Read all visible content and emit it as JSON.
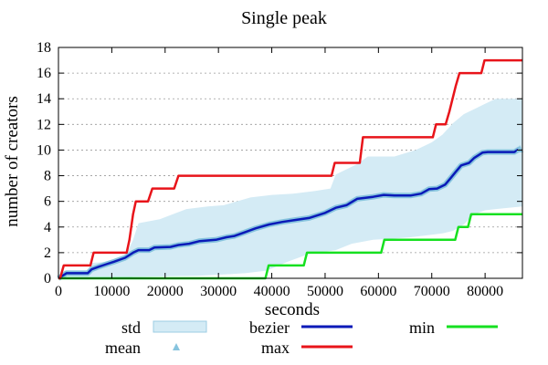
{
  "chart_data": {
    "type": "line",
    "title": "Single peak",
    "xlabel": "seconds",
    "ylabel": "number of creators",
    "xlim": [
      0,
      87000
    ],
    "ylim": [
      0,
      18
    ],
    "xticks": [
      0,
      10000,
      20000,
      30000,
      40000,
      50000,
      60000,
      70000,
      80000
    ],
    "yticks": [
      0,
      2,
      4,
      6,
      8,
      10,
      12,
      14,
      16,
      18
    ],
    "grid": true,
    "legend_position": "bottom",
    "legend": [
      {
        "key": "std",
        "label": "std",
        "style": "band"
      },
      {
        "key": "mean",
        "label": "mean",
        "style": "marker"
      },
      {
        "key": "bezier",
        "label": "bezier",
        "style": "line"
      },
      {
        "key": "max",
        "label": "max",
        "style": "line"
      },
      {
        "key": "min",
        "label": "min",
        "style": "line"
      }
    ],
    "colors": {
      "std": "#d4ebf5",
      "std_edge": "#9ccde3",
      "mean": "#87c4de",
      "bezier": "#0a1ab8",
      "max": "#e8141a",
      "min": "#16e020"
    },
    "series": {
      "max": [
        [
          0,
          0
        ],
        [
          300,
          0
        ],
        [
          1000,
          1
        ],
        [
          6000,
          1
        ],
        [
          6600,
          2
        ],
        [
          12800,
          2
        ],
        [
          13300,
          3
        ],
        [
          14000,
          5
        ],
        [
          14500,
          6
        ],
        [
          16800,
          6
        ],
        [
          17600,
          7
        ],
        [
          21700,
          7
        ],
        [
          22500,
          8
        ],
        [
          51200,
          8
        ],
        [
          51800,
          9
        ],
        [
          56500,
          9
        ],
        [
          57100,
          11
        ],
        [
          70200,
          11
        ],
        [
          70800,
          12
        ],
        [
          72600,
          12
        ],
        [
          73300,
          13
        ],
        [
          74500,
          15
        ],
        [
          75200,
          16
        ],
        [
          79300,
          16
        ],
        [
          79900,
          17
        ],
        [
          87000,
          17
        ]
      ],
      "min": [
        [
          0,
          0
        ],
        [
          38800,
          0
        ],
        [
          39400,
          1
        ],
        [
          46000,
          1
        ],
        [
          46600,
          2
        ],
        [
          60500,
          2
        ],
        [
          61100,
          3
        ],
        [
          74400,
          3
        ],
        [
          75000,
          4
        ],
        [
          76800,
          4
        ],
        [
          77400,
          5
        ],
        [
          87000,
          5
        ]
      ],
      "bezier": [
        [
          0,
          0
        ],
        [
          1500,
          0.4
        ],
        [
          5500,
          0.4
        ],
        [
          6200,
          0.7
        ],
        [
          7500,
          0.9
        ],
        [
          9000,
          1.1
        ],
        [
          10500,
          1.3
        ],
        [
          12500,
          1.6
        ],
        [
          14000,
          2.0
        ],
        [
          15000,
          2.2
        ],
        [
          17000,
          2.2
        ],
        [
          18000,
          2.4
        ],
        [
          21000,
          2.45
        ],
        [
          22500,
          2.6
        ],
        [
          24500,
          2.7
        ],
        [
          26500,
          2.9
        ],
        [
          29500,
          3.0
        ],
        [
          31500,
          3.2
        ],
        [
          33000,
          3.3
        ],
        [
          35000,
          3.6
        ],
        [
          37000,
          3.9
        ],
        [
          39500,
          4.2
        ],
        [
          42000,
          4.4
        ],
        [
          44500,
          4.55
        ],
        [
          47000,
          4.7
        ],
        [
          50000,
          5.1
        ],
        [
          52000,
          5.5
        ],
        [
          54000,
          5.7
        ],
        [
          56000,
          6.2
        ],
        [
          59000,
          6.35
        ],
        [
          61000,
          6.5
        ],
        [
          63000,
          6.45
        ],
        [
          66000,
          6.45
        ],
        [
          68000,
          6.6
        ],
        [
          69500,
          6.95
        ],
        [
          71000,
          7.0
        ],
        [
          72500,
          7.3
        ],
        [
          73500,
          7.8
        ],
        [
          74500,
          8.3
        ],
        [
          75500,
          8.8
        ],
        [
          77000,
          9.0
        ],
        [
          78000,
          9.4
        ],
        [
          79500,
          9.8
        ],
        [
          80500,
          9.85
        ],
        [
          85500,
          9.85
        ],
        [
          86500,
          10.1
        ]
      ],
      "std_upper": [
        [
          0,
          0
        ],
        [
          500,
          0.4
        ],
        [
          5500,
          0.4
        ],
        [
          6000,
          1.2
        ],
        [
          10000,
          1.3
        ],
        [
          12000,
          1.3
        ],
        [
          13000,
          2.1
        ],
        [
          14000,
          3.0
        ],
        [
          15000,
          4.3
        ],
        [
          19000,
          4.6
        ],
        [
          24000,
          5.4
        ],
        [
          28000,
          5.6
        ],
        [
          31000,
          5.7
        ],
        [
          36000,
          6.3
        ],
        [
          40000,
          6.5
        ],
        [
          44000,
          6.6
        ],
        [
          48000,
          6.8
        ],
        [
          51000,
          7.0
        ],
        [
          52000,
          8.1
        ],
        [
          56000,
          8.9
        ],
        [
          58000,
          9.5
        ],
        [
          63000,
          9.5
        ],
        [
          67000,
          10.0
        ],
        [
          70000,
          10.6
        ],
        [
          72000,
          11.2
        ],
        [
          74000,
          12.1
        ],
        [
          76000,
          12.8
        ],
        [
          78000,
          13.2
        ],
        [
          80000,
          13.6
        ],
        [
          82000,
          14.0
        ],
        [
          87000,
          14.0
        ]
      ],
      "std_lower": [
        [
          0,
          0
        ],
        [
          5500,
          0
        ],
        [
          13000,
          0
        ],
        [
          14000,
          0.1
        ],
        [
          20000,
          0.15
        ],
        [
          26000,
          0.2
        ],
        [
          31000,
          0.3
        ],
        [
          35000,
          0.4
        ],
        [
          39000,
          0.6
        ],
        [
          43000,
          1.3
        ],
        [
          47000,
          1.9
        ],
        [
          52000,
          2.2
        ],
        [
          55000,
          2.7
        ],
        [
          59000,
          3.0
        ],
        [
          63000,
          3.1
        ],
        [
          66000,
          3.2
        ],
        [
          68000,
          3.3
        ],
        [
          70000,
          3.4
        ],
        [
          72000,
          3.5
        ],
        [
          74000,
          3.7
        ],
        [
          76000,
          4.2
        ],
        [
          78000,
          5.0
        ],
        [
          80000,
          5.3
        ],
        [
          82000,
          5.4
        ],
        [
          87000,
          5.6
        ]
      ]
    }
  }
}
